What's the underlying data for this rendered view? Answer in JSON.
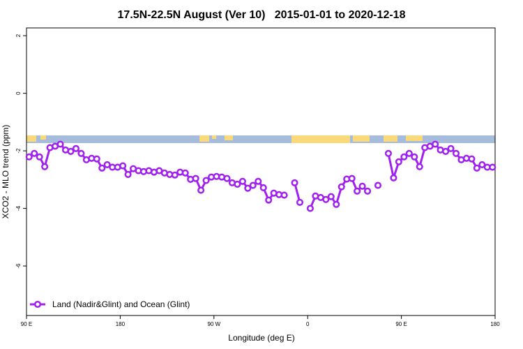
{
  "chart_data": {
    "type": "line",
    "title": "17.5N-22.5N August (Ver 10)   2015-01-01 to 2020-12-18",
    "x_label": "Longitude (deg E)",
    "y_label": "XCO2 - MLO trend (ppm)",
    "xlim": [
      90,
      540
    ],
    "ylim": [
      -7.72,
      2.27
    ],
    "xticks": [
      {
        "value": 90,
        "label": "90 E"
      },
      180,
      {
        "value": 270,
        "label": "90 W"
      },
      {
        "value": 360,
        "label": "0"
      },
      {
        "value": 450,
        "label": "90 E"
      },
      {
        "value": 540,
        "label": "180"
      }
    ],
    "yticks": [
      -6,
      -4,
      -2,
      0,
      2
    ],
    "legend": "bottom-left",
    "x": [
      92.5,
      97.5,
      102.5,
      107.5,
      112.5,
      117.5,
      122.5,
      127.5,
      132.5,
      137.5,
      142.5,
      147.5,
      152.5,
      157.5,
      162.5,
      167.5,
      172.5,
      177.5,
      182.5,
      187.5,
      192.5,
      197.5,
      202.5,
      207.5,
      212.5,
      217.5,
      222.5,
      227.5,
      232.5,
      237.5,
      242.5,
      247.5,
      252.5,
      257.5,
      262.5,
      267.5,
      272.5,
      277.5,
      282.5,
      287.5,
      292.5,
      297.5,
      302.5,
      307.5,
      312.5,
      317.5,
      322.5,
      327.5,
      332.5,
      337.5,
      342.5,
      347.5,
      352.5,
      357.5,
      362.5,
      367.5,
      372.5,
      377.5,
      382.5,
      387.5,
      392.5,
      397.5,
      402.5,
      407.5,
      412.5,
      417.5,
      422.5,
      427.5,
      432.5,
      437.5,
      442.5,
      447.5,
      452.5,
      457.5,
      462.5,
      467.5,
      472.5,
      477.5,
      482.5,
      487.5,
      492.5,
      497.5,
      502.5,
      507.5,
      512.5,
      517.5,
      522.5,
      527.5,
      532.5,
      537.5
    ],
    "series": [
      {
        "name": "Land (Nadir&Glint) and Ocean (Glint)",
        "color": "#a020f0",
        "values": [
          -2.21,
          -2.09,
          -2.21,
          -2.55,
          -1.89,
          -1.84,
          -1.77,
          -1.97,
          -2.02,
          -1.92,
          -2.09,
          -2.31,
          -2.26,
          -2.28,
          -2.6,
          -2.48,
          -2.57,
          -2.57,
          -2.52,
          -2.82,
          -2.62,
          -2.69,
          -2.72,
          -2.69,
          -2.74,
          -2.69,
          -2.77,
          -2.82,
          -2.84,
          -2.74,
          -2.77,
          -2.99,
          -2.96,
          -3.37,
          -3.03,
          -2.91,
          -2.89,
          -2.91,
          -2.96,
          -3.11,
          -3.16,
          -3.06,
          -3.3,
          -3.2,
          -3.06,
          -3.28,
          -3.71,
          -3.47,
          -3.52,
          -3.54,
          null,
          -3.11,
          -3.79,
          null,
          -4.0,
          -3.57,
          -3.62,
          -3.69,
          -3.59,
          -3.86,
          -3.25,
          -2.98,
          -2.96,
          -3.4,
          -3.23,
          -3.4,
          null,
          -3.2,
          null,
          -2.09,
          -2.94,
          -2.38,
          -2.21,
          -2.09,
          -2.21,
          -2.55,
          -1.89,
          -1.84,
          -1.77,
          -1.97,
          -2.02,
          -1.92,
          -2.09,
          -2.31,
          -2.26,
          -2.28,
          -2.6,
          -2.48,
          -2.57,
          -2.57
        ]
      }
    ]
  }
}
